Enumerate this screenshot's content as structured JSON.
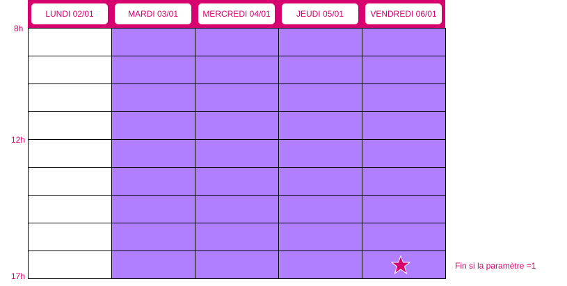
{
  "days": [
    {
      "label": "LUNDI 02/01",
      "available": false
    },
    {
      "label": "MARDI 03/01",
      "available": true
    },
    {
      "label": "MERCREDI 04/01",
      "available": true
    },
    {
      "label": "JEUDI 05/01",
      "available": true
    },
    {
      "label": "VENDREDI 06/01",
      "available": true
    }
  ],
  "hours": {
    "start": "8h",
    "mid": "12h",
    "end": "17h"
  },
  "slot_count": 9,
  "note": "Fin si la paramètre =1",
  "colors": {
    "accent": "#d6006e",
    "available": "#b07fff",
    "unavailable": "#ffffff"
  },
  "marker_icon": "star-icon"
}
